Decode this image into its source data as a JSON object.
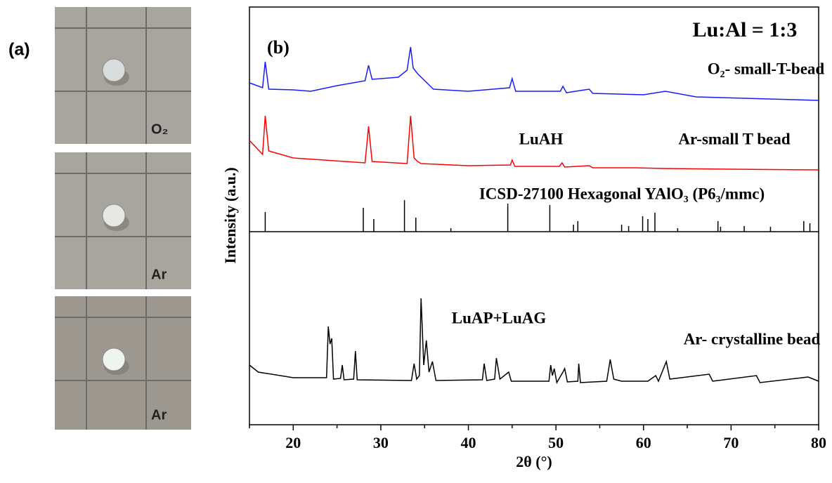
{
  "panel_a": {
    "label": "(a)",
    "photos": [
      "O₂",
      "Ar",
      "Ar"
    ]
  },
  "chart_data": {
    "type": "line",
    "panel_label": "(b)",
    "x_label": "2θ (°)",
    "y_label": "Intensity (a.u.)",
    "xlim": [
      15,
      80
    ],
    "xticks": [
      20,
      30,
      40,
      50,
      60,
      70,
      80
    ],
    "xminor_ticks": [
      15,
      25,
      35,
      45,
      55,
      65,
      75
    ],
    "ylim": [
      0,
      595
    ],
    "annotations": [
      "Lu:Al = 1:3",
      "LuAH",
      "ICSD-27100 Hexagonal YAlO₃ (P6₃/mmc)",
      "LuAP+LuAG"
    ],
    "series": [
      {
        "name": "O₂- small-T-bead",
        "color": "#1a1aff",
        "x": [
          15,
          16.5,
          16.8,
          17.2,
          20,
          22,
          25,
          28.2,
          28.6,
          29,
          32,
          33.0,
          33.4,
          33.7,
          34.2,
          36,
          40,
          44.7,
          45.0,
          45.4,
          50.5,
          50.8,
          51.2,
          53.8,
          54.2,
          60,
          62.5,
          66,
          80
        ],
        "values": [
          487,
          480,
          517,
          478,
          477,
          475,
          483,
          490,
          512,
          492,
          495,
          505,
          538,
          508,
          500,
          478,
          475,
          480,
          493,
          475,
          475,
          482,
          473,
          478,
          472,
          470,
          475,
          467,
          462
        ]
      },
      {
        "name": "Ar-small T bead",
        "color": "#ff0000",
        "x": [
          15,
          16.5,
          16.8,
          17.2,
          20,
          28.2,
          28.6,
          29,
          33.0,
          33.4,
          33.8,
          34.2,
          34.6,
          40,
          44.8,
          45.0,
          45.3,
          50.4,
          50.7,
          51,
          53.8,
          54.2,
          59,
          62.5,
          70,
          80
        ],
        "values": [
          405,
          385,
          440,
          390,
          380,
          373,
          425,
          375,
          372,
          440,
          380,
          375,
          372,
          369,
          370,
          377,
          368,
          368,
          373,
          367,
          369,
          366,
          366,
          365,
          364,
          363
        ]
      },
      {
        "name": "ICSD-27100",
        "type": "stick",
        "color": "#000000",
        "x": [
          16.8,
          28,
          29.2,
          32.7,
          34,
          38,
          44.5,
          49.3,
          52,
          52.5,
          57.5,
          58.3,
          59.9,
          60.5,
          61.3,
          63.9,
          68.5,
          68.8,
          71.5,
          74.5,
          78.3,
          79
        ],
        "values": [
          303,
          309,
          293,
          320,
          295,
          280,
          315,
          313,
          285,
          290,
          285,
          283,
          297,
          293,
          302,
          280,
          290,
          282,
          283,
          282,
          290,
          287
        ]
      },
      {
        "name": "Ar- crystalline bead",
        "color": "#000000",
        "x": [
          15,
          16,
          20,
          23.8,
          24,
          24.2,
          24.4,
          24.6,
          25.4,
          25.6,
          25.8,
          26.9,
          27.1,
          27.3,
          33.5,
          33.8,
          34.1,
          34.4,
          34.6,
          34.9,
          35.2,
          35.5,
          35.9,
          36.3,
          41.6,
          41.8,
          42.1,
          43.0,
          43.2,
          43.4,
          43.6,
          44.6,
          44.9,
          49.2,
          49.4,
          49.6,
          49.8,
          50.1,
          50.8,
          51.0,
          51.3,
          52.5,
          52.6,
          52.8,
          55.8,
          56.2,
          56.6,
          57.5,
          60.5,
          61.4,
          61.7,
          62.6,
          63,
          67.5,
          67.9,
          72.9,
          73.3,
          78.8,
          80
        ],
        "values": [
          85,
          75,
          67,
          67,
          140,
          115,
          123,
          65,
          66,
          85,
          64,
          65,
          105,
          64,
          63,
          87,
          65,
          70,
          180,
          85,
          120,
          75,
          90,
          63,
          64,
          87,
          63,
          65,
          95,
          80,
          65,
          75,
          62,
          62,
          85,
          70,
          80,
          60,
          75,
          80,
          61,
          62,
          87,
          60,
          62,
          93,
          65,
          62,
          62,
          70,
          62,
          90,
          65,
          72,
          62,
          70,
          60,
          68,
          62
        ]
      }
    ]
  }
}
